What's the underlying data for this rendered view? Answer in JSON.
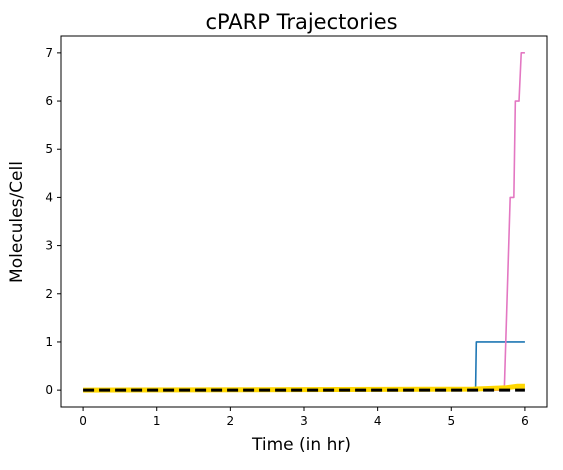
{
  "chart_data": {
    "type": "line",
    "title": "cPARP Trajectories",
    "xlabel": "Time (in hr)",
    "ylabel": "Molecules/Cell",
    "xlim": [
      -0.3,
      6.3
    ],
    "ylim": [
      -0.35,
      7.35
    ],
    "xticks": [
      0,
      1,
      2,
      3,
      4,
      5,
      6
    ],
    "yticks": [
      0,
      1,
      2,
      3,
      4,
      5,
      6,
      7
    ],
    "grid": false,
    "series": [
      {
        "name": "trajectory-blue",
        "color": "#1f77b4",
        "style": "solid",
        "points": [
          [
            0,
            0
          ],
          [
            5.33,
            0
          ],
          [
            5.34,
            1
          ],
          [
            6.0,
            1
          ]
        ]
      },
      {
        "name": "trajectory-pink",
        "color": "#e377c2",
        "style": "solid",
        "points": [
          [
            0,
            0
          ],
          [
            5.72,
            0
          ],
          [
            5.8,
            4
          ],
          [
            5.85,
            4
          ],
          [
            5.87,
            6
          ],
          [
            5.92,
            6
          ],
          [
            5.95,
            7
          ],
          [
            6.0,
            7
          ]
        ]
      },
      {
        "name": "mean",
        "color": "#ffd700",
        "style": "thick",
        "points": [
          [
            0,
            0
          ],
          [
            5.3,
            0.02
          ],
          [
            5.75,
            0.05
          ],
          [
            5.9,
            0.08
          ],
          [
            6.0,
            0.08
          ]
        ]
      },
      {
        "name": "median",
        "color": "#000000",
        "style": "dashed",
        "points": [
          [
            0,
            0
          ],
          [
            6.0,
            0
          ]
        ]
      }
    ]
  }
}
